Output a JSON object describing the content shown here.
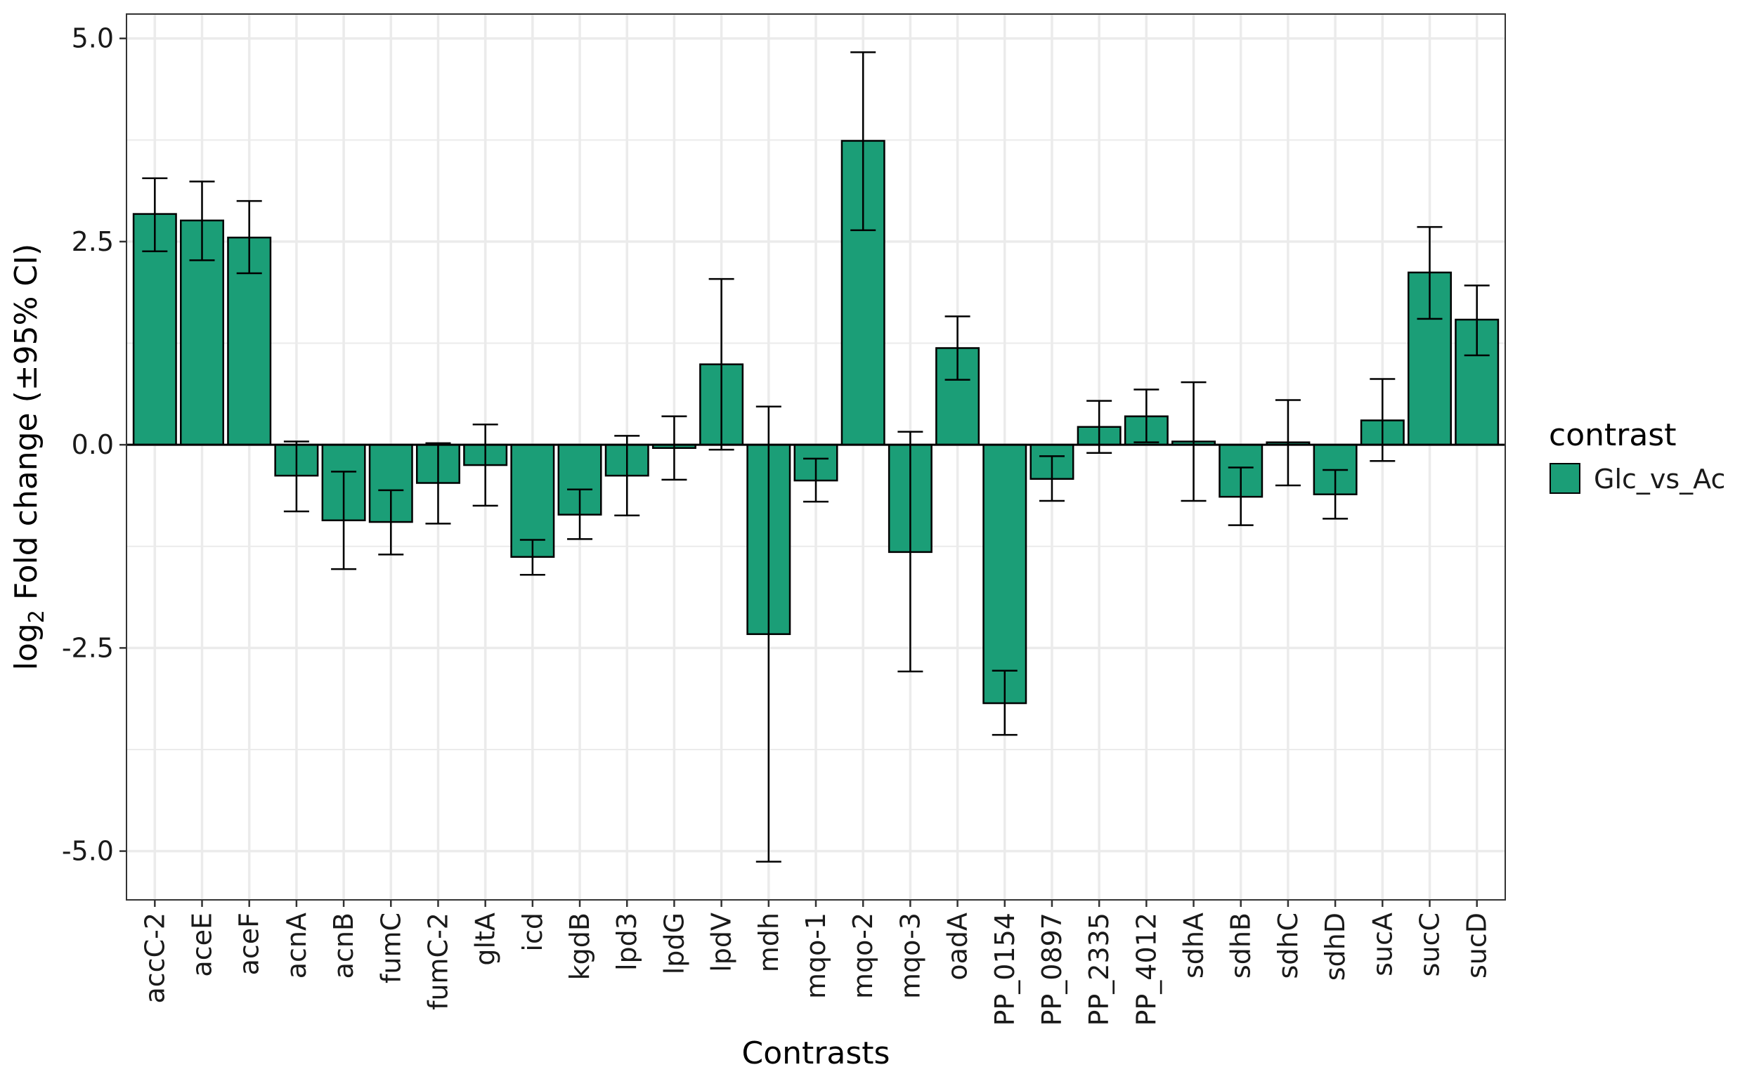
{
  "chart_data": {
    "type": "bar",
    "xlabel": "Contrasts",
    "ylabel": {
      "prefix": "log",
      "subscript": "2",
      "suffix": " Fold change (±95% CI)"
    },
    "ylim": [
      -5.6,
      5.3
    ],
    "yticks": [
      5.0,
      2.5,
      0.0,
      -2.5,
      -5.0
    ],
    "ytick_labels": [
      "5.0",
      "2.5",
      "0.0",
      "-2.5",
      "-5.0"
    ],
    "grid": true,
    "legend": {
      "title": "contrast",
      "position": "right"
    },
    "categories": [
      "accC-2",
      "aceE",
      "aceF",
      "acnA",
      "acnB",
      "fumC",
      "fumC-2",
      "gltA",
      "icd",
      "kgdB",
      "lpd3",
      "lpdG",
      "lpdV",
      "mdh",
      "mqo-1",
      "mqo-2",
      "mqo-3",
      "oadA",
      "PP_0154",
      "PP_0897",
      "PP_2335",
      "PP_4012",
      "sdhA",
      "sdhB",
      "sdhC",
      "sdhD",
      "sucA",
      "sucC",
      "sucD"
    ],
    "series": [
      {
        "name": "Glc_vs_Ac",
        "color": "#1b9e77",
        "values": [
          2.84,
          2.76,
          2.55,
          -0.38,
          -0.93,
          -0.95,
          -0.47,
          -0.25,
          -1.38,
          -0.86,
          -0.38,
          -0.04,
          0.99,
          -2.33,
          -0.44,
          3.74,
          -1.32,
          1.19,
          -3.18,
          -0.42,
          0.22,
          0.35,
          0.04,
          -0.64,
          0.03,
          -0.61,
          0.3,
          2.12,
          1.54
        ],
        "ci_lower": [
          2.38,
          2.27,
          2.11,
          -0.82,
          -1.53,
          -1.35,
          -0.97,
          -0.75,
          -1.6,
          -1.16,
          -0.87,
          -0.43,
          -0.06,
          -5.13,
          -0.7,
          2.64,
          -2.79,
          0.8,
          -3.57,
          -0.69,
          -0.1,
          0.03,
          -0.69,
          -0.99,
          -0.5,
          -0.91,
          -0.2,
          1.55,
          1.1
        ],
        "ci_upper": [
          3.28,
          3.24,
          3.0,
          0.04,
          -0.33,
          -0.56,
          0.02,
          0.25,
          -1.17,
          -0.55,
          0.11,
          0.35,
          2.04,
          0.47,
          -0.17,
          4.83,
          0.16,
          1.58,
          -2.78,
          -0.14,
          0.54,
          0.68,
          0.77,
          -0.28,
          0.55,
          -0.31,
          0.81,
          2.68,
          1.96
        ]
      }
    ]
  }
}
